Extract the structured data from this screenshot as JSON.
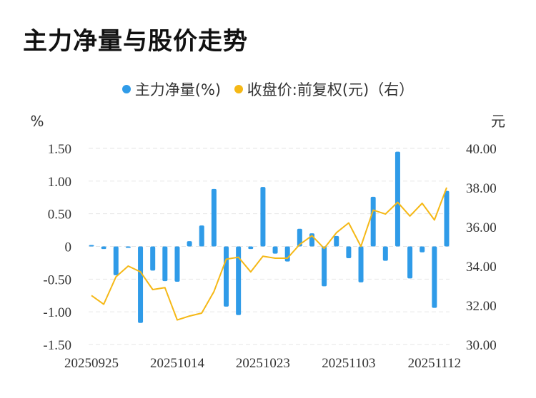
{
  "title": "主力净量与股价走势",
  "colors": {
    "bar": "#2f9be8",
    "line": "#f5b816",
    "grid": "#e6e6e6"
  },
  "chart_data": {
    "type": "bar+line",
    "left_axis": {
      "unit": "%",
      "ylim": [
        -1.5,
        1.5
      ],
      "ticks": [
        "1.50",
        "1.00",
        "0.50",
        "0",
        "-0.50",
        "-1.00",
        "-1.50"
      ],
      "tick_values": [
        1.5,
        1.0,
        0.5,
        0,
        -0.5,
        -1.0,
        -1.5
      ]
    },
    "right_axis": {
      "unit": "元",
      "ylim": [
        30,
        40
      ],
      "ticks": [
        "40.00",
        "38.00",
        "36.00",
        "34.00",
        "32.00",
        "30.00"
      ],
      "tick_values": [
        40,
        38,
        36,
        34,
        32,
        30
      ]
    },
    "x_tick_labels": [
      "20250925",
      "20251014",
      "20251023",
      "20251103",
      "20251112"
    ],
    "x_tick_index": [
      0,
      7,
      14,
      21,
      28
    ],
    "grid": true,
    "legend_position": "top-center",
    "series": [
      {
        "name": "主力净量(%)",
        "type": "bar",
        "axis": "left",
        "values": [
          0.02,
          -0.04,
          -0.44,
          -0.01,
          -1.17,
          -0.37,
          -0.53,
          -0.54,
          0.08,
          0.32,
          0.88,
          -0.92,
          -1.05,
          -0.04,
          0.91,
          -0.11,
          -0.23,
          0.27,
          0.2,
          -0.61,
          0.16,
          -0.18,
          -0.55,
          0.76,
          -0.22,
          1.45,
          -0.49,
          -0.09,
          -0.94,
          0.85
        ]
      },
      {
        "name": "收盘价:前复权(元)（右）",
        "type": "line",
        "axis": "right",
        "values": [
          32.5,
          32.05,
          33.45,
          34.0,
          33.7,
          32.8,
          32.9,
          31.25,
          31.45,
          31.6,
          32.7,
          34.35,
          34.45,
          33.7,
          34.5,
          34.4,
          34.4,
          35.1,
          35.55,
          34.9,
          35.7,
          36.2,
          35.0,
          36.85,
          36.65,
          37.25,
          36.55,
          37.2,
          36.35,
          38.0
        ]
      }
    ]
  }
}
